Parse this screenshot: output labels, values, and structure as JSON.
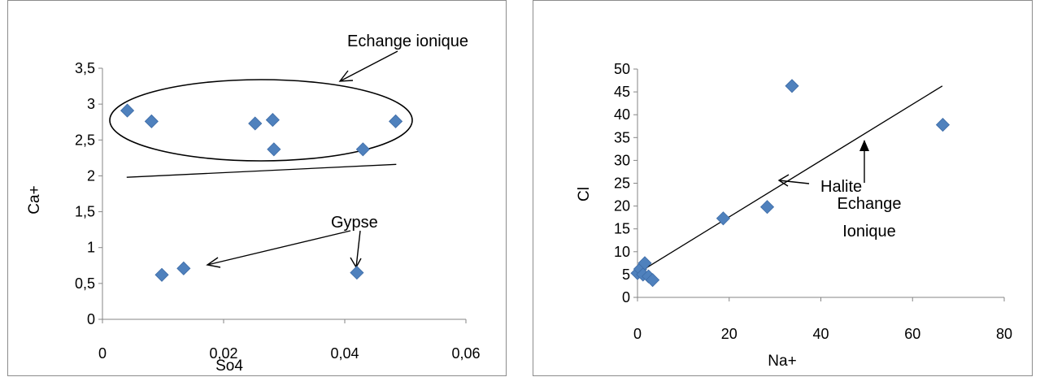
{
  "chart_data": [
    {
      "type": "scatter",
      "title": "",
      "xlabel": "So4",
      "ylabel": "Ca+",
      "xlim": [
        0,
        0.06
      ],
      "ylim": [
        0,
        3.5
      ],
      "x_ticks": [
        "0",
        "0,02",
        "0,04",
        "0,06"
      ],
      "y_ticks": [
        "0",
        "0,5",
        "1",
        "1,5",
        "2",
        "2,5",
        "3",
        "3,5"
      ],
      "grid": false,
      "legend": "none",
      "marker_color": "#4f81bd",
      "series": [
        {
          "points": [
            {
              "x": 0.0041,
              "y": 2.91
            },
            {
              "x": 0.0081,
              "y": 2.76
            },
            {
              "x": 0.0252,
              "y": 2.73
            },
            {
              "x": 0.0281,
              "y": 2.78
            },
            {
              "x": 0.0283,
              "y": 2.37
            },
            {
              "x": 0.043,
              "y": 2.37
            },
            {
              "x": 0.0484,
              "y": 2.76
            },
            {
              "x": 0.0098,
              "y": 0.62
            },
            {
              "x": 0.0134,
              "y": 0.71
            },
            {
              "x": 0.042,
              "y": 0.65
            }
          ]
        }
      ],
      "annotations": {
        "echange": "Echange ionique",
        "gypse": "Gypse"
      },
      "trend_line": {
        "from": {
          "x": 0.004,
          "y": 1.98
        },
        "to": {
          "x": 0.0485,
          "y": 2.16
        }
      }
    },
    {
      "type": "scatter",
      "title": "",
      "xlabel": "Na+",
      "ylabel": "Cl",
      "xlim": [
        0,
        80
      ],
      "ylim": [
        0,
        50
      ],
      "x_ticks": [
        "0",
        "20",
        "40",
        "60",
        "80"
      ],
      "y_ticks": [
        "0",
        "5",
        "10",
        "15",
        "20",
        "25",
        "30",
        "35",
        "40",
        "45",
        "50"
      ],
      "grid": false,
      "legend": "none",
      "marker_color": "#4f81bd",
      "series": [
        {
          "points": [
            {
              "x": 0.0,
              "y": 5.3
            },
            {
              "x": 0.6,
              "y": 6.2
            },
            {
              "x": 1.2,
              "y": 5.0
            },
            {
              "x": 1.6,
              "y": 7.5
            },
            {
              "x": 2.4,
              "y": 4.6
            },
            {
              "x": 3.3,
              "y": 3.8
            },
            {
              "x": 18.7,
              "y": 17.3
            },
            {
              "x": 28.3,
              "y": 19.8
            },
            {
              "x": 33.7,
              "y": 46.3
            },
            {
              "x": 66.6,
              "y": 37.8
            }
          ]
        }
      ],
      "annotations": {
        "halite": "Halite",
        "echange_line1": "Echange",
        "echange_line2": "Ionique"
      },
      "trend_line": {
        "from": {
          "x": 1.5,
          "y": 6.2
        },
        "to": {
          "x": 66.5,
          "y": 46.3
        }
      }
    }
  ]
}
